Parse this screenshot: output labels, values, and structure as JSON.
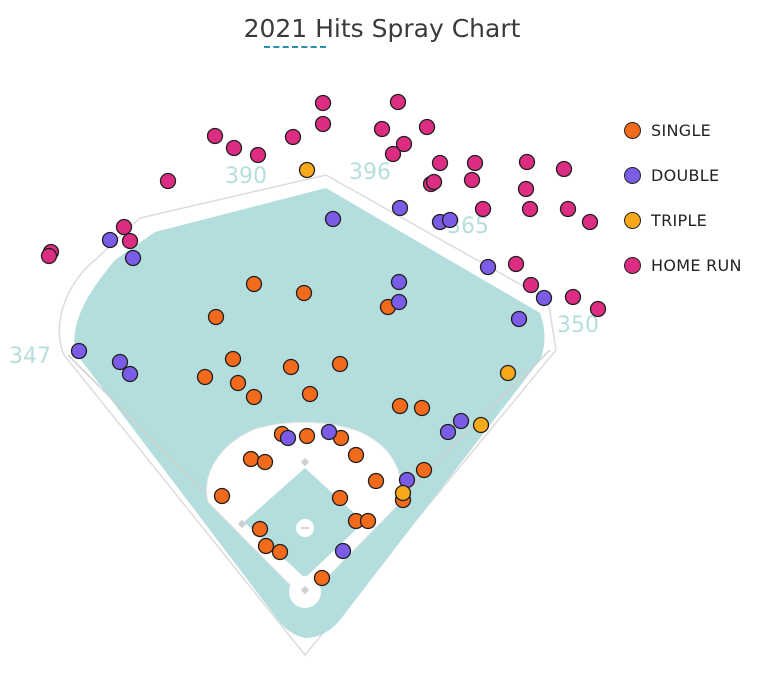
{
  "title": "2021 Hits Spray Chart",
  "distances": {
    "left_line": "347",
    "left_center": "390",
    "center": "396",
    "right_center": "365",
    "right_line": "350"
  },
  "legend": [
    {
      "label": "SINGLE",
      "color": "#f26a1b"
    },
    {
      "label": "DOUBLE",
      "color": "#7b5ce6"
    },
    {
      "label": "TRIPLE",
      "color": "#f7a81b"
    },
    {
      "label": "HOME RUN",
      "color": "#dc2d82"
    }
  ],
  "colors": {
    "field": "#b4dedd",
    "outline": "#d6d6d6",
    "infield_dirt": "#ffffff"
  },
  "chart_data": {
    "type": "scatter",
    "title": "2021 Hits Spray Chart",
    "xlabel": "",
    "ylabel": "",
    "series": [
      {
        "name": "SINGLE",
        "points": [
          [
            254,
            284
          ],
          [
            304,
            293
          ],
          [
            216,
            317
          ],
          [
            388,
            307
          ],
          [
            233,
            359
          ],
          [
            291,
            367
          ],
          [
            340,
            364
          ],
          [
            205,
            377
          ],
          [
            238,
            383
          ],
          [
            254,
            397
          ],
          [
            310,
            394
          ],
          [
            400,
            406
          ],
          [
            422,
            408
          ],
          [
            282,
            434
          ],
          [
            307,
            436
          ],
          [
            341,
            438
          ],
          [
            251,
            459
          ],
          [
            265,
            462
          ],
          [
            356,
            455
          ],
          [
            376,
            481
          ],
          [
            424,
            470
          ],
          [
            222,
            496
          ],
          [
            340,
            498
          ],
          [
            403,
            500
          ],
          [
            356,
            521
          ],
          [
            368,
            521
          ],
          [
            260,
            529
          ],
          [
            266,
            546
          ],
          [
            280,
            552
          ],
          [
            322,
            578
          ]
        ]
      },
      {
        "name": "DOUBLE",
        "points": [
          [
            333,
            219
          ],
          [
            400,
            208
          ],
          [
            440,
            222
          ],
          [
            450,
            220
          ],
          [
            110,
            240
          ],
          [
            133,
            258
          ],
          [
            488,
            267
          ],
          [
            399,
            282
          ],
          [
            399,
            302
          ],
          [
            544,
            298
          ],
          [
            519,
            319
          ],
          [
            79,
            351
          ],
          [
            120,
            362
          ],
          [
            130,
            374
          ],
          [
            461,
            421
          ],
          [
            448,
            432
          ],
          [
            288,
            438
          ],
          [
            329,
            432
          ],
          [
            407,
            480
          ],
          [
            343,
            551
          ]
        ]
      },
      {
        "name": "TRIPLE",
        "points": [
          [
            307,
            170
          ],
          [
            508,
            373
          ],
          [
            481,
            425
          ],
          [
            403,
            493
          ]
        ]
      },
      {
        "name": "HOME RUN",
        "points": [
          [
            323,
            103
          ],
          [
            398,
            102
          ],
          [
            323,
            124
          ],
          [
            382,
            129
          ],
          [
            427,
            127
          ],
          [
            215,
            136
          ],
          [
            234,
            148
          ],
          [
            258,
            155
          ],
          [
            293,
            137
          ],
          [
            404,
            144
          ],
          [
            393,
            154
          ],
          [
            440,
            163
          ],
          [
            475,
            163
          ],
          [
            527,
            162
          ],
          [
            564,
            169
          ],
          [
            168,
            181
          ],
          [
            431,
            184
          ],
          [
            434,
            182
          ],
          [
            472,
            180
          ],
          [
            526,
            189
          ],
          [
            483,
            209
          ],
          [
            530,
            209
          ],
          [
            568,
            209
          ],
          [
            590,
            222
          ],
          [
            124,
            227
          ],
          [
            130,
            241
          ],
          [
            51,
            252
          ],
          [
            49,
            256
          ],
          [
            516,
            264
          ],
          [
            531,
            285
          ],
          [
            573,
            297
          ],
          [
            598,
            309
          ]
        ]
      }
    ]
  }
}
